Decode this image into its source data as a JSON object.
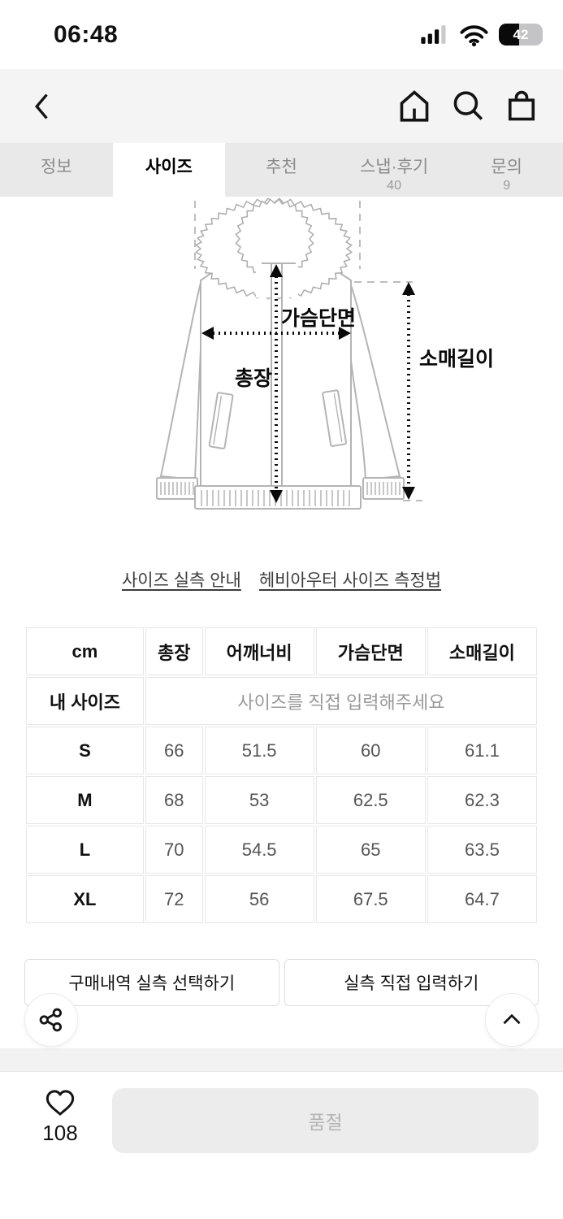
{
  "status_bar": {
    "time": "06:48",
    "battery_percent": "42"
  },
  "tabs": {
    "items": [
      {
        "label": "정보",
        "count": ""
      },
      {
        "label": "사이즈",
        "count": ""
      },
      {
        "label": "추천",
        "count": ""
      },
      {
        "label": "스냅·후기",
        "count": "40"
      },
      {
        "label": "문의",
        "count": "9"
      }
    ]
  },
  "diagram": {
    "chest_label": "가슴단면",
    "length_label": "총장",
    "sleeve_label": "소매길이"
  },
  "links": {
    "size_guide": "사이즈 실측 안내",
    "measure_method": "헤비아우터 사이즈 측정법"
  },
  "size_table": {
    "headers": [
      "cm",
      "총장",
      "어깨너비",
      "가슴단면",
      "소매길이"
    ],
    "my_size_label": "내 사이즈",
    "my_size_placeholder": "사이즈를 직접 입력해주세요",
    "rows": [
      {
        "size": "S",
        "values": [
          "66",
          "51.5",
          "60",
          "61.1"
        ]
      },
      {
        "size": "M",
        "values": [
          "68",
          "53",
          "62.5",
          "62.3"
        ]
      },
      {
        "size": "L",
        "values": [
          "70",
          "54.5",
          "65",
          "63.5"
        ]
      },
      {
        "size": "XL",
        "values": [
          "72",
          "56",
          "67.5",
          "64.7"
        ]
      }
    ]
  },
  "actions": {
    "select_from_history": "구매내역 실측 선택하기",
    "enter_directly": "실측 직접 입력하기"
  },
  "bottom_bar": {
    "like_count": "108",
    "cta_label": "품절"
  },
  "colors": {
    "tabbar_bg": "#e9e9e9",
    "navbar_bg": "#f4f4f4",
    "disabled_bg": "#ececec",
    "accent_text": "#000000"
  }
}
